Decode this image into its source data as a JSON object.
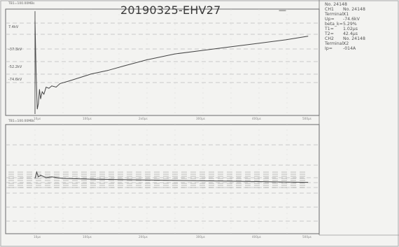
{
  "header": {
    "title": "20190325-EHV27",
    "timebase_top": "TB1=100.00MBs",
    "timebase_bottom": "TB1=100.00MBs",
    "dash": "—"
  },
  "measurements": {
    "no": "No. 24148",
    "rows": [
      {
        "k": "CH1",
        "v": "No. 24148"
      },
      {
        "k": "Terminal:",
        "v": "X1"
      },
      {
        "k": "Up=",
        "v": "-74.6kV"
      },
      {
        "k": "beta_k=",
        "v": "5.29%"
      },
      {
        "k": "T1=",
        "v": "1.02µs"
      },
      {
        "k": "T2=",
        "v": "42.4µs"
      },
      {
        "k": "CH2",
        "v": "No. 24148"
      },
      {
        "k": "Terminal:",
        "v": "X2"
      },
      {
        "k": "Ip=",
        "v": "-014A"
      }
    ]
  },
  "chart_data": [
    {
      "type": "line",
      "title": "20190325-EHV27",
      "ylabels": [
        "7.4kV",
        "-37.3kV",
        "-52.2kV",
        "-74.6kV"
      ],
      "xlabels": [
        "10µs",
        "100µs",
        "2x0µs",
        "300µs",
        "400µs",
        "500µs"
      ],
      "xlim": [
        0,
        500
      ],
      "ylim": [
        -80,
        10
      ],
      "grid": true,
      "series": [
        {
          "x": [
            0,
            2,
            4,
            6,
            8,
            10,
            13,
            16,
            20,
            25,
            30,
            38,
            45,
            60,
            80,
            100,
            130,
            160,
            200,
            250,
            300,
            350,
            400,
            450,
            490
          ],
          "y": [
            0,
            -45,
            -74.6,
            -70,
            -58,
            -66,
            -60,
            -62,
            -56,
            -57,
            -55,
            -56,
            -53,
            -51,
            -48,
            -45,
            -42,
            -38,
            -33,
            -28,
            -25,
            -22,
            -19,
            -16,
            -13
          ]
        }
      ]
    },
    {
      "type": "line",
      "ylabels": [
        "",
        "",
        "",
        ""
      ],
      "xlabels": [
        "10µs",
        "100µs",
        "200µs",
        "300µs",
        "400µs",
        "500µs"
      ],
      "xlim": [
        0,
        500
      ],
      "grid": true,
      "series": [
        {
          "x": [
            0,
            3,
            6,
            10,
            20,
            30,
            50,
            100,
            200,
            300,
            400,
            490
          ],
          "y": [
            0,
            4,
            1,
            2,
            0.5,
            1,
            0,
            -0.5,
            -1,
            -1.5,
            -2,
            -2.5
          ]
        }
      ]
    }
  ],
  "colors": {
    "trace": "#444444",
    "grid": "#bcbcbc",
    "frame": "#6a6a6a",
    "background": "#f3f3f1"
  }
}
